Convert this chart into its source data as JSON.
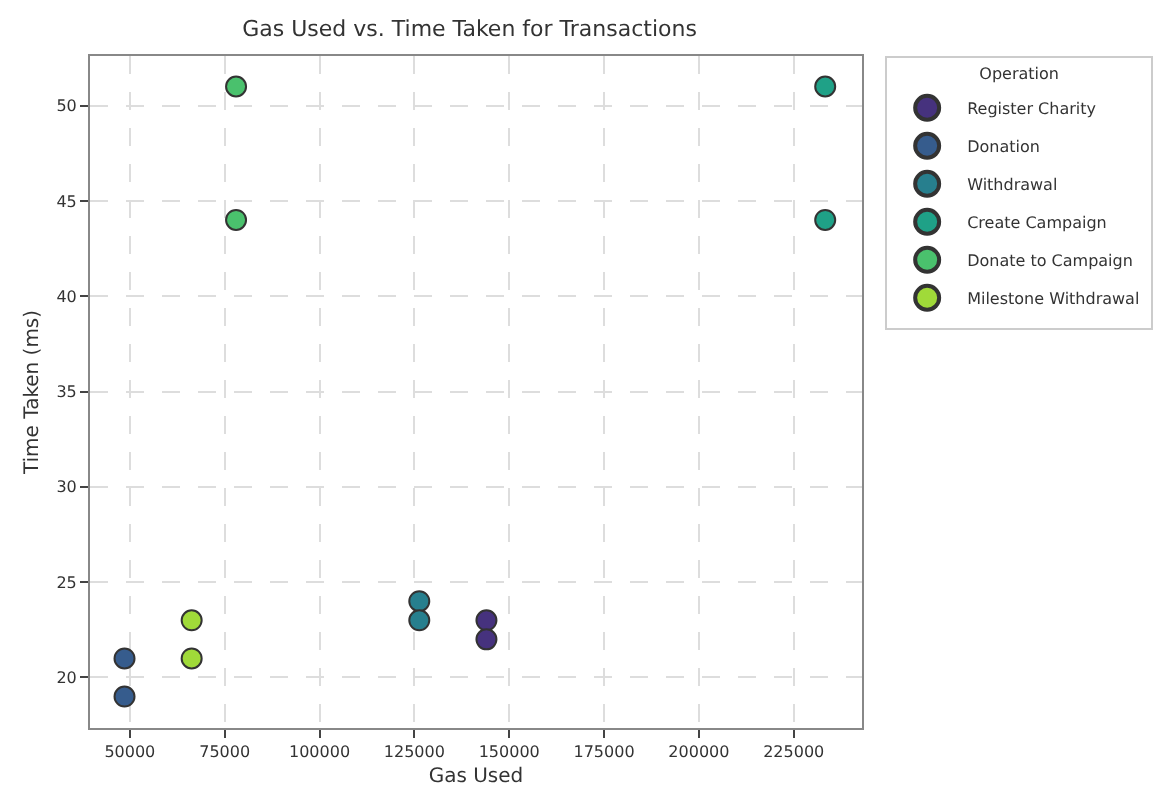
{
  "chart_data": {
    "type": "scatter",
    "title": "Gas Used vs. Time Taken for Transactions",
    "xlabel": "Gas Used",
    "ylabel": "Time Taken (ms)",
    "legend_title": "Operation",
    "series": [
      {
        "name": "Register Charity",
        "color": "#46327e",
        "x": [
          144000,
          144000
        ],
        "values": [
          23,
          22
        ]
      },
      {
        "name": "Donation",
        "color": "#365c8d",
        "x": [
          48600,
          48600
        ],
        "values": [
          21,
          19
        ]
      },
      {
        "name": "Withdrawal",
        "color": "#277f8e",
        "x": [
          126300,
          126300
        ],
        "values": [
          24,
          23
        ]
      },
      {
        "name": "Create Campaign",
        "color": "#1fa187",
        "x": [
          233300,
          233300
        ],
        "values": [
          51,
          44
        ]
      },
      {
        "name": "Donate to Campaign",
        "color": "#4ac16d",
        "x": [
          78000,
          78000
        ],
        "values": [
          51,
          44
        ]
      },
      {
        "name": "Milestone Withdrawal",
        "color": "#a0da39",
        "x": [
          66300,
          66300
        ],
        "values": [
          23,
          21
        ]
      }
    ],
    "xlim": [
      39500,
      243000
    ],
    "xticks": [
      50000,
      75000,
      100000,
      125000,
      150000,
      175000,
      200000,
      225000
    ],
    "ylim": [
      17.35,
      52.6
    ],
    "yticks": [
      20,
      25,
      30,
      35,
      40,
      45,
      50
    ],
    "grid": true,
    "legend": "top right",
    "marker": "circle"
  }
}
